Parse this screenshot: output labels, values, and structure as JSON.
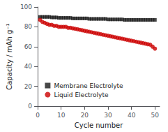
{
  "chart_data": {
    "type": "scatter",
    "xlabel": "Cycle number",
    "ylabel": "Capacity / mAh g⁻¹",
    "xlim": [
      0,
      52
    ],
    "ylim": [
      0,
      100
    ],
    "xticks": [
      0,
      10,
      20,
      30,
      40,
      50
    ],
    "yticks": [
      0,
      20,
      40,
      60,
      80,
      100
    ],
    "grid": false,
    "legend": "lower center",
    "series": [
      {
        "name": "Membrane Electrolyte",
        "color": "#1a1a1a",
        "marker": "square",
        "x": [
          1,
          2,
          3,
          4,
          5,
          6,
          7,
          8,
          9,
          10,
          11,
          12,
          13,
          14,
          15,
          16,
          17,
          18,
          19,
          20,
          21,
          22,
          23,
          24,
          25,
          26,
          27,
          28,
          29,
          30,
          31,
          32,
          33,
          34,
          35,
          36,
          37,
          38,
          39,
          40,
          41,
          42,
          43,
          44,
          45,
          46,
          47,
          48,
          49,
          50
        ],
        "values": [
          90,
          90,
          90,
          90,
          90,
          89.5,
          89.5,
          89.5,
          89,
          89,
          89,
          89,
          89,
          89,
          88.5,
          88.5,
          88.5,
          88.5,
          88.5,
          88.5,
          88.5,
          88,
          88,
          88,
          88,
          88,
          88,
          88,
          88,
          87.5,
          87.5,
          87.5,
          87.5,
          87.5,
          87.5,
          87.5,
          87,
          87,
          87,
          87,
          87,
          87,
          87,
          87,
          87,
          87,
          87,
          87,
          87,
          87
        ]
      },
      {
        "name": "Liquid Electrolyte",
        "color": "#cc0000",
        "marker": "circle",
        "x": [
          1,
          2,
          3,
          4,
          5,
          6,
          7,
          8,
          9,
          10,
          11,
          12,
          13,
          14,
          15,
          16,
          17,
          18,
          19,
          20,
          21,
          22,
          23,
          24,
          25,
          26,
          27,
          28,
          29,
          30,
          31,
          32,
          33,
          34,
          35,
          36,
          37,
          38,
          39,
          40,
          41,
          42,
          43,
          44,
          45,
          46,
          47,
          48,
          49,
          50
        ],
        "values": [
          87,
          85,
          84,
          83,
          82,
          82,
          81,
          81,
          80,
          80,
          80,
          80,
          79,
          79,
          78.5,
          78,
          77.5,
          77,
          76.5,
          76,
          75.5,
          75,
          74.5,
          74,
          73.5,
          73,
          72.5,
          72,
          71.5,
          71,
          70.5,
          70,
          69.5,
          69,
          68.5,
          68,
          67.5,
          67,
          66.5,
          66,
          65.5,
          65,
          64.5,
          64,
          63.5,
          63,
          62.5,
          62,
          60,
          58
        ]
      }
    ]
  }
}
